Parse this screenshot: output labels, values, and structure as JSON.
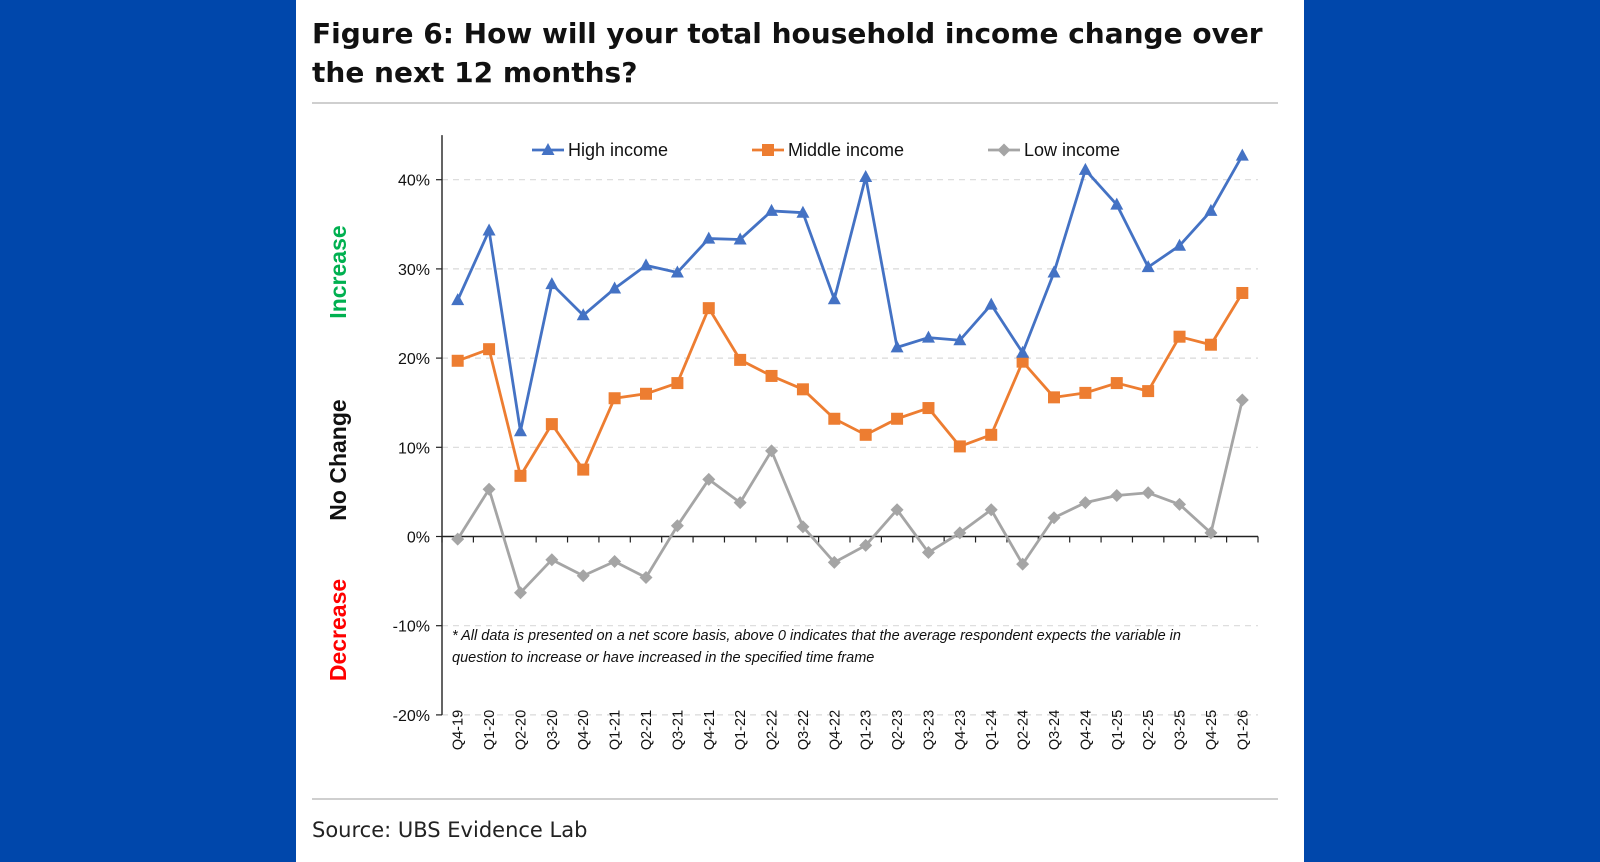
{
  "figure": {
    "title": "Figure 6: How will your total household income change over the next 12 months?",
    "source": "Source: UBS Evidence Lab"
  },
  "chart_data": {
    "type": "line",
    "title": "",
    "xlabel": "",
    "ylabel": "",
    "ylim": [
      -20,
      45
    ],
    "yticks": [
      -20,
      -10,
      0,
      10,
      20,
      30,
      40
    ],
    "ytick_labels": [
      "-20%",
      "-10%",
      "0%",
      "10%",
      "20%",
      "30%",
      "40%"
    ],
    "grid": "horizontal dashed",
    "legend": "top",
    "categories": [
      "Q4-19",
      "Q1-20",
      "Q2-20",
      "Q3-20",
      "Q4-20",
      "Q1-21",
      "Q2-21",
      "Q3-21",
      "Q4-21",
      "Q1-22",
      "Q2-22",
      "Q3-22",
      "Q4-22",
      "Q1-23",
      "Q2-23",
      "Q3-23",
      "Q4-23",
      "Q1-24",
      "Q2-24",
      "Q3-24",
      "Q4-24",
      "Q1-25",
      "Q2-25",
      "Q3-25",
      "Q4-25",
      "Q1-26"
    ],
    "series": [
      {
        "name": "High income",
        "color": "#4472C4",
        "marker": "triangle",
        "values": [
          26.5,
          34.3,
          11.8,
          28.3,
          24.8,
          27.8,
          30.4,
          29.6,
          33.4,
          33.3,
          36.5,
          36.3,
          26.6,
          40.3,
          21.2,
          22.3,
          22.0,
          26.0,
          20.6,
          29.6,
          41.1,
          37.2,
          30.2,
          32.6,
          36.5,
          42.7
        ]
      },
      {
        "name": "Middle income",
        "color": "#ED7D31",
        "marker": "square",
        "values": [
          19.7,
          21.0,
          6.8,
          12.6,
          7.5,
          15.5,
          16.0,
          17.2,
          25.6,
          19.8,
          18.0,
          16.5,
          13.2,
          11.4,
          13.2,
          14.4,
          10.1,
          11.4,
          19.6,
          15.6,
          16.1,
          17.2,
          16.3,
          22.4,
          21.5,
          27.3
        ]
      },
      {
        "name": "Low income",
        "color": "#A5A5A5",
        "marker": "diamond",
        "values": [
          -0.3,
          5.3,
          -6.3,
          -2.6,
          -4.4,
          -2.8,
          -4.6,
          1.2,
          6.4,
          3.8,
          9.6,
          1.1,
          -2.9,
          -1.0,
          3.0,
          -1.8,
          0.4,
          3.0,
          -3.1,
          2.1,
          3.8,
          4.6,
          4.9,
          3.6,
          0.4,
          15.3
        ]
      }
    ],
    "side_labels": [
      {
        "text": "Increase",
        "color": "#00B050"
      },
      {
        "text": "No Change",
        "color": "#111111"
      },
      {
        "text": "Decrease",
        "color": "#FF0000"
      }
    ],
    "note_lines": [
      "* All data is presented on a net score basis, above 0 indicates that the average respondent expects the variable in",
      "question to increase or have increased in the specified time frame"
    ]
  }
}
